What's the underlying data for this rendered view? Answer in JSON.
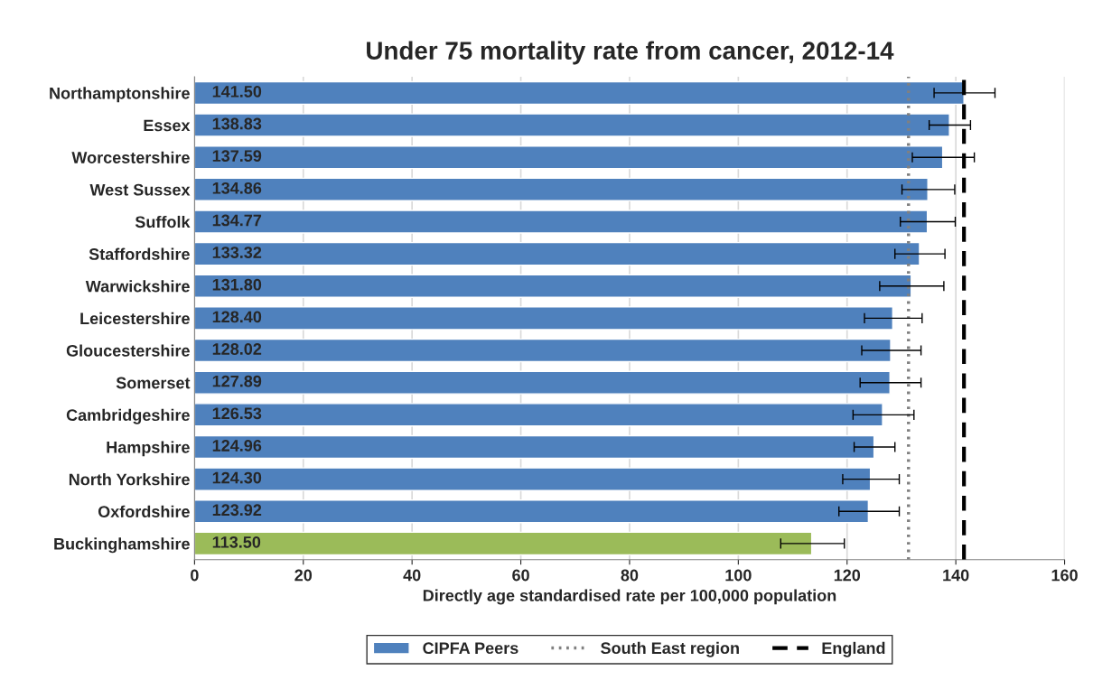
{
  "chart_data": {
    "type": "bar",
    "orientation": "horizontal",
    "title": "Under 75 mortality rate from cancer, 2012-14",
    "xlabel": "Directly age standardised rate per 100,000 population",
    "categories": [
      "Northamptonshire",
      "Essex",
      "Worcestershire",
      "West Sussex",
      "Suffolk",
      "Staffordshire",
      "Warwickshire",
      "Leicestershire",
      "Gloucestershire",
      "Somerset",
      "Cambridgeshire",
      "Hampshire",
      "North Yorkshire",
      "Oxfordshire",
      "Buckinghamshire"
    ],
    "series": [
      {
        "name": "CIPFA Peers",
        "color": "#4f81bd",
        "values": [
          141.5,
          138.83,
          137.59,
          134.86,
          134.77,
          133.32,
          131.8,
          128.4,
          128.02,
          127.89,
          126.53,
          124.96,
          124.3,
          123.92,
          113.5
        ],
        "colors": [
          "#4f81bd",
          "#4f81bd",
          "#4f81bd",
          "#4f81bd",
          "#4f81bd",
          "#4f81bd",
          "#4f81bd",
          "#4f81bd",
          "#4f81bd",
          "#4f81bd",
          "#4f81bd",
          "#4f81bd",
          "#4f81bd",
          "#4f81bd",
          "#9bbb59"
        ],
        "value_labels": [
          "141.50",
          "138.83",
          "137.59",
          "134.86",
          "134.77",
          "133.32",
          "131.80",
          "128.40",
          "128.02",
          "127.89",
          "126.53",
          "124.96",
          "124.30",
          "123.92",
          "113.50"
        ],
        "errors": [
          [
            136.0,
            147.2
          ],
          [
            135.1,
            142.7
          ],
          [
            132.0,
            143.4
          ],
          [
            130.1,
            139.8
          ],
          [
            129.8,
            139.9
          ],
          [
            128.8,
            138.0
          ],
          [
            126.0,
            137.8
          ],
          [
            123.2,
            133.8
          ],
          [
            122.7,
            133.6
          ],
          [
            122.4,
            133.6
          ],
          [
            121.1,
            132.3
          ],
          [
            121.3,
            128.8
          ],
          [
            119.2,
            129.6
          ],
          [
            118.5,
            129.6
          ],
          [
            107.8,
            119.5
          ]
        ]
      }
    ],
    "ref_lines": [
      {
        "axis": "x",
        "value": 131.3,
        "label": "South East region",
        "color": "#808080",
        "line_style": "dotted"
      },
      {
        "axis": "x",
        "value": 141.5,
        "label": "England",
        "color": "#000000",
        "line_style": "dashed"
      }
    ],
    "xlim": [
      0,
      160
    ],
    "xticks": [
      0,
      20,
      40,
      60,
      80,
      100,
      120,
      140,
      160
    ],
    "grid": "x",
    "legend": "bottom"
  }
}
